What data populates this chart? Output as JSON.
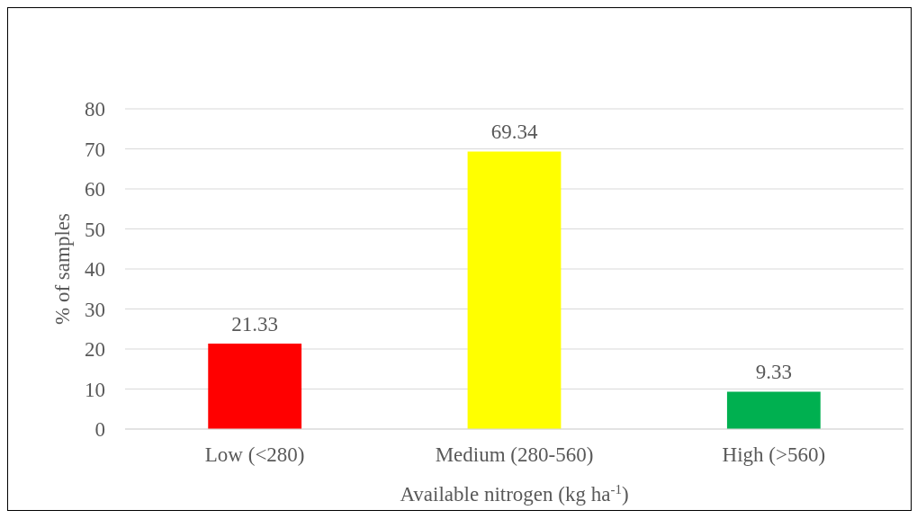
{
  "chart_data": {
    "type": "bar",
    "xlabel": "Available nitrogen (kg ha$^{-1}$)",
    "ylabel": "% of samples",
    "categories": [
      "Low (<280)",
      "Medium (280-560)",
      "High (>560)"
    ],
    "values": [
      21.33,
      69.34,
      9.33
    ],
    "colors": [
      "#ff0000",
      "#ffff00",
      "#00b050"
    ],
    "ylim": [
      0,
      80
    ],
    "yticks": [
      0,
      10,
      20,
      30,
      40,
      50,
      60,
      70,
      80
    ],
    "grid": "y",
    "data_labels": true
  }
}
